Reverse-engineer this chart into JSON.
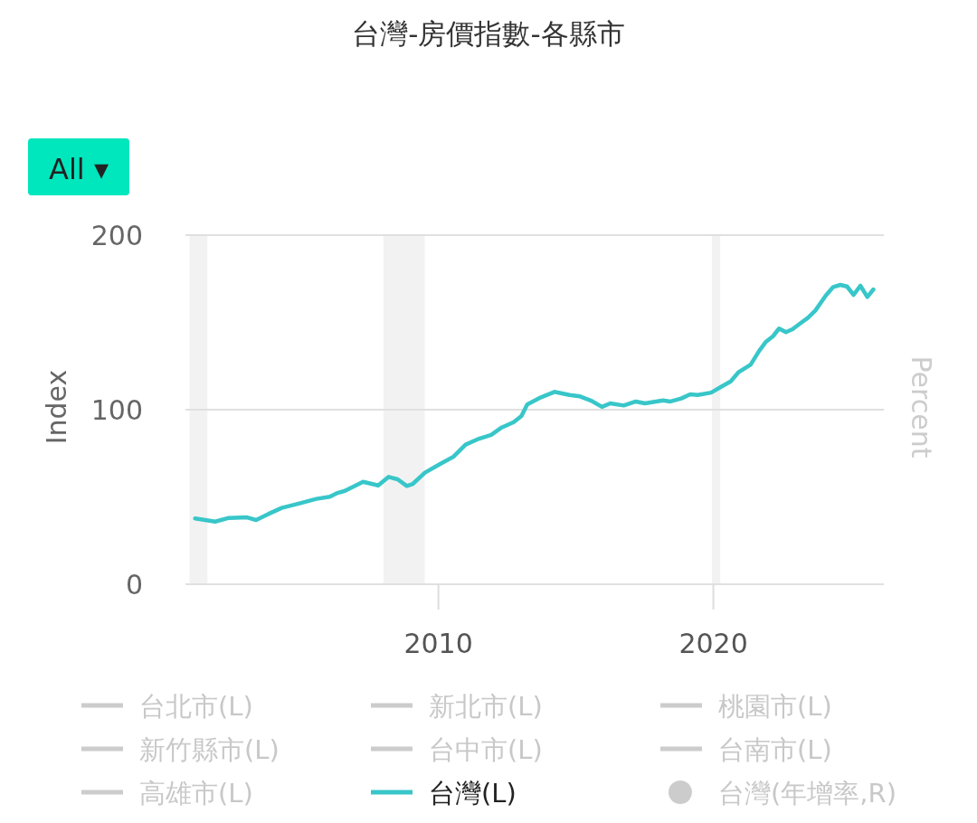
{
  "chart_data": {
    "type": "line",
    "title": "台灣-房價指數-各縣市",
    "ylabel": "Index",
    "y2label": "Percent",
    "annotations": [
      "All ▾"
    ],
    "xlim": [
      2000.8,
      2026.2
    ],
    "xticks": [
      2010,
      2020
    ],
    "ylim": [
      0,
      200
    ],
    "yticks": [
      0,
      100,
      200
    ],
    "grid": "y",
    "legend": "bottom",
    "bands": [
      {
        "axis": "x",
        "from": 2000.95,
        "to": 2001.6,
        "color": "#f2f2f2"
      },
      {
        "axis": "x",
        "from": 2008.0,
        "to": 2009.5,
        "color": "#f2f2f2"
      },
      {
        "axis": "x",
        "from": 2019.95,
        "to": 2020.25,
        "color": "#f2f2f2"
      }
    ],
    "series": [
      {
        "name": "台北市(L)",
        "color": "#cccccc"
      },
      {
        "name": "新北市(L)",
        "color": "#cccccc"
      },
      {
        "name": "桃園市(L)",
        "color": "#cccccc"
      },
      {
        "name": "新竹縣市(L)",
        "color": "#cccccc"
      },
      {
        "name": "台中市(L)",
        "color": "#cccccc"
      },
      {
        "name": "台南市(L)",
        "color": "#cccccc"
      },
      {
        "name": "高雄市(L)",
        "color": "#cccccc"
      },
      {
        "name": "台灣(L)",
        "color": "#38c6c9",
        "x": [
          2001.15,
          2001.88,
          2002.38,
          2003.04,
          2003.37,
          2003.81,
          2004.3,
          2005.01,
          2005.56,
          2006.05,
          2006.33,
          2006.6,
          2007.26,
          2007.81,
          2008.19,
          2008.52,
          2008.85,
          2009.07,
          2009.51,
          2010.05,
          2010.55,
          2010.99,
          2011.48,
          2011.92,
          2012.3,
          2012.74,
          2013.02,
          2013.23,
          2013.73,
          2014.22,
          2014.77,
          2015.15,
          2015.54,
          2015.95,
          2016.25,
          2016.74,
          2017.18,
          2017.51,
          2018.17,
          2018.44,
          2018.83,
          2019.16,
          2019.43,
          2019.92,
          2020.25,
          2020.63,
          2020.91,
          2021.35,
          2021.68,
          2021.9,
          2022.17,
          2022.39,
          2022.64,
          2022.88,
          2023.13,
          2023.43,
          2023.71,
          2024.09,
          2024.36,
          2024.62,
          2024.86,
          2025.1,
          2025.35,
          2025.6,
          2025.82
        ],
        "values": [
          37.7,
          35.9,
          38.0,
          38.3,
          36.8,
          40.2,
          43.7,
          46.6,
          48.9,
          50.1,
          52.3,
          53.5,
          58.7,
          56.6,
          61.5,
          60.1,
          56.3,
          57.5,
          63.9,
          68.8,
          73.1,
          80.0,
          83.4,
          85.6,
          89.8,
          92.9,
          96.4,
          103.0,
          107.1,
          110.2,
          108.4,
          107.6,
          105.3,
          101.6,
          103.6,
          102.4,
          104.7,
          103.6,
          105.3,
          104.7,
          106.4,
          108.8,
          108.4,
          109.8,
          112.8,
          116.2,
          121.4,
          125.7,
          134.0,
          138.7,
          142.1,
          146.5,
          144.4,
          146.1,
          149.1,
          152.5,
          156.8,
          165.4,
          170.3,
          171.5,
          170.6,
          165.8,
          171.0,
          164.6,
          168.9
        ]
      },
      {
        "name": "台灣(年增率,R)",
        "color": "#cccccc",
        "type": "scatter",
        "axis": "y2",
        "marker": "circle"
      }
    ]
  }
}
